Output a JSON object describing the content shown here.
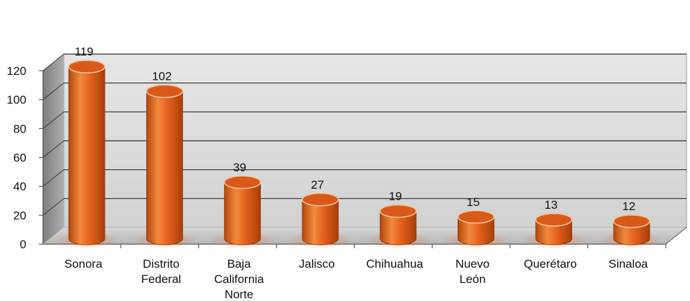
{
  "chart_data": {
    "type": "bar",
    "style": "3d-cylinder",
    "categories": [
      "Sonora",
      "Distrito Federal",
      "Baja California Norte",
      "Jalisco",
      "Chihuahua",
      "Nuevo León",
      "Querétaro",
      "Sinaloa"
    ],
    "category_lines": [
      [
        "Sonora"
      ],
      [
        "Distrito",
        "Federal"
      ],
      [
        "Baja",
        "California",
        "Norte"
      ],
      [
        "Jalisco"
      ],
      [
        "Chihuahua"
      ],
      [
        "Nuevo",
        "León"
      ],
      [
        "Querétaro"
      ],
      [
        "Sinaloa"
      ]
    ],
    "values": [
      119,
      102,
      39,
      27,
      19,
      15,
      13,
      12
    ],
    "data_labels": [
      "119",
      "102",
      "39",
      "27",
      "19",
      "15",
      "13",
      "12"
    ],
    "y_ticks": [
      0,
      20,
      40,
      60,
      80,
      100,
      120
    ],
    "y_tick_labels": [
      "0",
      "20",
      "40",
      "60",
      "80",
      "100",
      "120"
    ],
    "ylim": [
      0,
      120
    ],
    "grid": true,
    "colors": {
      "bar": "#e8651f",
      "bar_dark": "#a83e08",
      "bar_light": "#f6a36a",
      "wall": "#d9d9d9",
      "floor": "#c4c4c4",
      "side_wall": "#9a9a9a"
    }
  }
}
